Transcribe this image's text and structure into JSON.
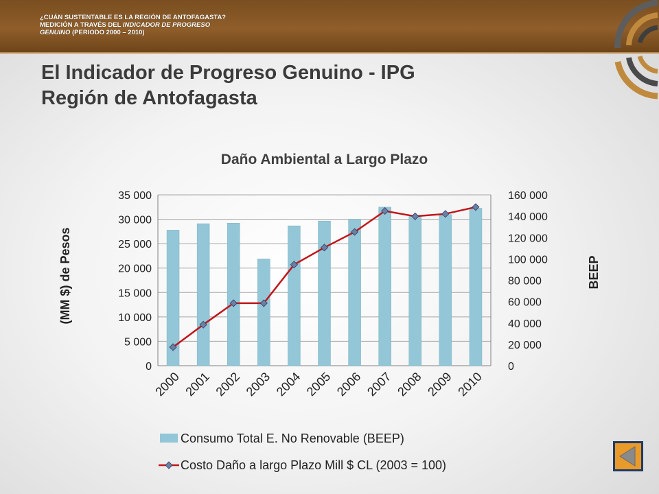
{
  "header": {
    "line1": "¿CUÁN SUSTENTABLE ES LA REGIÓN DE ANTOFAGASTA?",
    "line2_plain": "MEDICIÓN A TRAVÉS DEL ",
    "line2_italic": "INDICADOR DE PROGRESO",
    "line3_italic": "GENUINO",
    "line3_plain": " (PERIODO 2000 – 2010)"
  },
  "slide": {
    "title_line1": "El Indicador de Progreso Genuino - IPG",
    "title_line2": "Región de Antofagasta"
  },
  "colors": {
    "bar": "#93c6d6",
    "bar_edge": "#7fb3c4",
    "line": "#c0161b",
    "marker": "#6d7fa3",
    "header_band": "#7a4e20",
    "nav_button": "#e89a2a",
    "nav_button_border": "#1f3a66"
  },
  "icons": {
    "logo": "concentric-arc-logo-icon",
    "nav": "left-triangle-arrow-icon"
  },
  "chart_data": {
    "type": "bar+line",
    "title": "Daño Ambiental a Largo Plazo",
    "categories": [
      "2000",
      "2001",
      "2002",
      "2003",
      "2004",
      "2005",
      "2006",
      "2007",
      "2008",
      "2009",
      "2010"
    ],
    "ylabel_left": "(MM $) de Pesos",
    "ylabel_right": "BEEP",
    "ylim_left": [
      0,
      35000
    ],
    "yticks_left": [
      "0",
      "5 000",
      "10 000",
      "15 000",
      "20 000",
      "25 000",
      "30 000",
      "35 000"
    ],
    "ylim_right": [
      0,
      160000
    ],
    "yticks_right": [
      "0",
      "20 000",
      "40 000",
      "60 000",
      "80 000",
      "100 000",
      "120 000",
      "140 000",
      "160 000"
    ],
    "grid": true,
    "legend_position": "bottom",
    "series": [
      {
        "name": "Consumo Total E. No Renovable (BEEP)",
        "kind": "bar",
        "axis": "right",
        "values": [
          127000,
          133000,
          133500,
          100000,
          131000,
          135500,
          137000,
          148500,
          141000,
          141500,
          147500
        ]
      },
      {
        "name": "Costo Daño a largo Plazo Mill $ CL  (2003 = 100)",
        "kind": "line",
        "axis": "left",
        "values": [
          3800,
          8400,
          12800,
          12800,
          20700,
          24200,
          27400,
          31700,
          30600,
          31100,
          32500
        ]
      }
    ]
  }
}
